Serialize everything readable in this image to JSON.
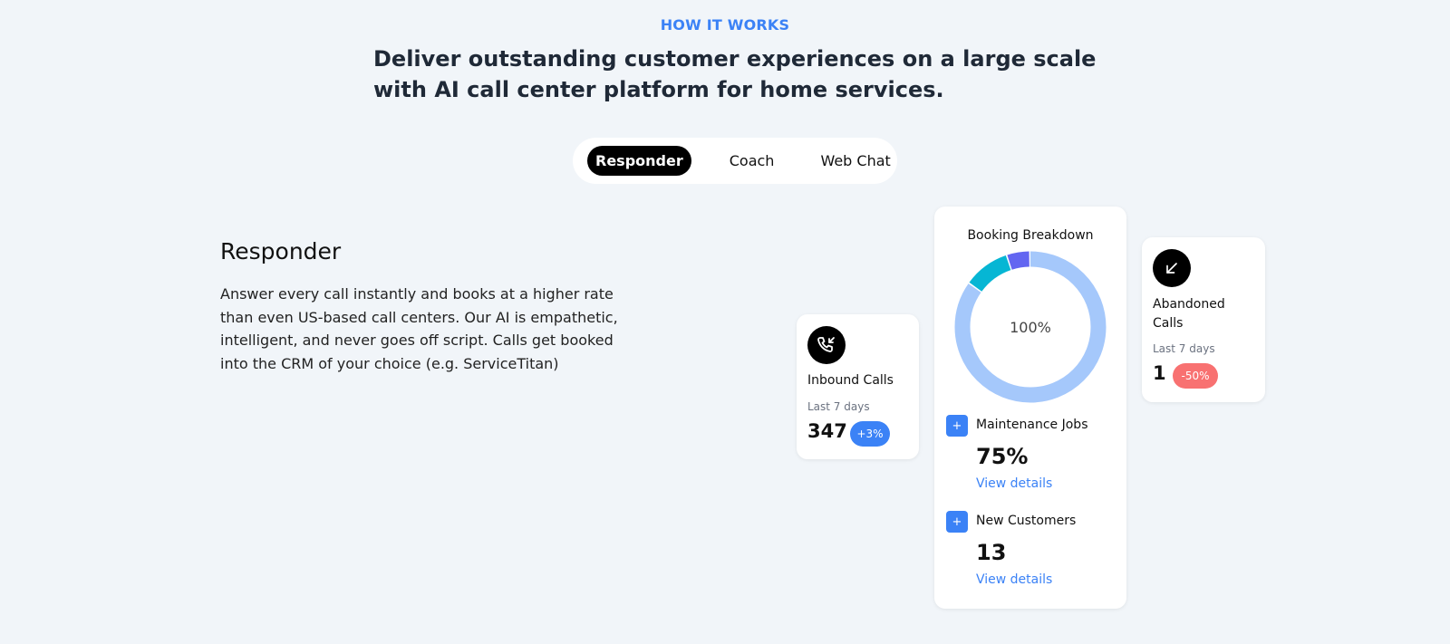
{
  "header": {
    "eyebrow": "HOW IT WORKS",
    "headline": "Deliver outstanding customer experiences on a large scale with AI call center platform for home services."
  },
  "tabs": [
    {
      "label": "Responder",
      "active": true
    },
    {
      "label": "Coach",
      "active": false
    },
    {
      "label": "Web Chat",
      "active": false
    }
  ],
  "section": {
    "title": "Responder",
    "description": "Answer every call instantly and books at a higher rate than even US-based call centers. Our AI is empathetic, intelligent, and never goes off script. Calls get booked into the CRM of your choice (e.g. ServiceTitan)"
  },
  "inbound": {
    "icon": "incoming-call-icon",
    "label": "Inbound Calls",
    "period": "Last 7 days",
    "value": "347",
    "badge": "+3%",
    "badge_color": "#3b82f6"
  },
  "booking": {
    "title": "Booking Breakdown",
    "center_label": "100%",
    "segments": [
      {
        "fraction": 0.85,
        "color": "#a5c8fb"
      },
      {
        "fraction": 0.1,
        "color": "#06b6d4"
      },
      {
        "fraction": 0.05,
        "color": "#6366f1"
      }
    ],
    "stats": [
      {
        "icon": "plus-icon",
        "label": "Maintenance Jobs",
        "value": "75%",
        "link": "View details"
      },
      {
        "icon": "plus-icon",
        "label": "New Customers",
        "value": "13",
        "link": "View details"
      }
    ]
  },
  "abandoned": {
    "icon": "arrow-down-left-icon",
    "label_line1": "Abandoned",
    "label_line2": "Calls",
    "period": "Last 7 days",
    "value": "1",
    "badge": "-50%",
    "badge_color": "#f87171"
  }
}
